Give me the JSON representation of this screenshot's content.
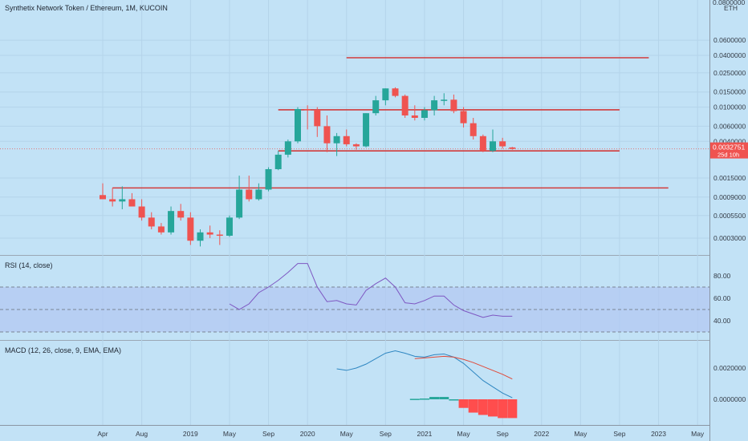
{
  "chart_data": [
    {
      "type": "candlestick",
      "title": "Synthetix Network Token / Ethereum, 1M, KUCOIN",
      "unit": "ETH",
      "y_tick_labels": [
        "0.0600000",
        "0.0400000",
        "0.0250000",
        "0.0150000",
        "0.0100000",
        "0.0060000",
        "0.0040000",
        "0.0015000",
        "0.0009000",
        "0.0005500",
        "0.0003000"
      ],
      "y_tick_values": [
        0.06,
        0.04,
        0.025,
        0.015,
        0.01,
        0.006,
        0.004,
        0.0015,
        0.0009,
        0.00055,
        0.0003
      ],
      "y_top_label": "0.0800000",
      "scale": "log",
      "last_price": "0.0032751",
      "countdown": "25d 10h",
      "x_tick_labels": [
        "Apr",
        "Aug",
        "2019",
        "May",
        "Sep",
        "2020",
        "May",
        "Sep",
        "2021",
        "May",
        "Sep",
        "2022",
        "May",
        "Sep",
        "2023",
        "May"
      ],
      "x_tick_dates": [
        "2018-04",
        "2018-08",
        "2019-01",
        "2019-05",
        "2019-09",
        "2020-01",
        "2020-05",
        "2020-09",
        "2021-01",
        "2021-05",
        "2021-09",
        "2022-01",
        "2022-05",
        "2022-09",
        "2023-01",
        "2023-05"
      ],
      "candles": [
        {
          "date": "2018-04",
          "open": 0.00095,
          "high": 0.0013,
          "low": 0.00085,
          "close": 0.00085
        },
        {
          "date": "2018-05",
          "open": 0.00085,
          "high": 0.00115,
          "low": 0.0007,
          "close": 0.0008
        },
        {
          "date": "2018-06",
          "open": 0.0008,
          "high": 0.0012,
          "low": 0.00065,
          "close": 0.00085
        },
        {
          "date": "2018-07",
          "open": 0.00085,
          "high": 0.001,
          "low": 0.0007,
          "close": 0.0007
        },
        {
          "date": "2018-08",
          "open": 0.0007,
          "high": 0.00085,
          "low": 0.00048,
          "close": 0.00052
        },
        {
          "date": "2018-09",
          "open": 0.00052,
          "high": 0.0006,
          "low": 0.00038,
          "close": 0.00041
        },
        {
          "date": "2018-10",
          "open": 0.00041,
          "high": 0.00045,
          "low": 0.00033,
          "close": 0.00035
        },
        {
          "date": "2018-11",
          "open": 0.00035,
          "high": 0.0007,
          "low": 0.00033,
          "close": 0.00062
        },
        {
          "date": "2018-12",
          "open": 0.00062,
          "high": 0.00075,
          "low": 0.00048,
          "close": 0.00052
        },
        {
          "date": "2019-01",
          "open": 0.00052,
          "high": 0.0006,
          "low": 0.00025,
          "close": 0.00028
        },
        {
          "date": "2019-02",
          "open": 0.00028,
          "high": 0.00038,
          "low": 0.00024,
          "close": 0.00035
        },
        {
          "date": "2019-03",
          "open": 0.00035,
          "high": 0.00042,
          "low": 0.0003,
          "close": 0.00033
        },
        {
          "date": "2019-04",
          "open": 0.00033,
          "high": 0.00037,
          "low": 0.00025,
          "close": 0.00032
        },
        {
          "date": "2019-05",
          "open": 0.00032,
          "high": 0.00055,
          "low": 0.00031,
          "close": 0.00052
        },
        {
          "date": "2019-06",
          "open": 0.00052,
          "high": 0.0016,
          "low": 0.0005,
          "close": 0.0011
        },
        {
          "date": "2019-07",
          "open": 0.0011,
          "high": 0.0016,
          "low": 0.0008,
          "close": 0.00085
        },
        {
          "date": "2019-08",
          "open": 0.00085,
          "high": 0.0013,
          "low": 0.00082,
          "close": 0.0011
        },
        {
          "date": "2019-09",
          "open": 0.0011,
          "high": 0.002,
          "low": 0.00105,
          "close": 0.0019
        },
        {
          "date": "2019-10",
          "open": 0.0019,
          "high": 0.0031,
          "low": 0.00185,
          "close": 0.0028
        },
        {
          "date": "2019-11",
          "open": 0.0028,
          "high": 0.0042,
          "low": 0.0026,
          "close": 0.004
        },
        {
          "date": "2019-12",
          "open": 0.004,
          "high": 0.01,
          "low": 0.0038,
          "close": 0.0095
        },
        {
          "date": "2020-01",
          "open": 0.0095,
          "high": 0.0105,
          "low": 0.0055,
          "close": 0.0093
        },
        {
          "date": "2020-02",
          "open": 0.0093,
          "high": 0.01,
          "low": 0.0045,
          "close": 0.006
        },
        {
          "date": "2020-03",
          "open": 0.006,
          "high": 0.008,
          "low": 0.003,
          "close": 0.0038
        },
        {
          "date": "2020-04",
          "open": 0.0038,
          "high": 0.005,
          "low": 0.0027,
          "close": 0.0046
        },
        {
          "date": "2020-05",
          "open": 0.0046,
          "high": 0.0055,
          "low": 0.0035,
          "close": 0.0037
        },
        {
          "date": "2020-06",
          "open": 0.0037,
          "high": 0.0038,
          "low": 0.0032,
          "close": 0.0035
        },
        {
          "date": "2020-07",
          "open": 0.0035,
          "high": 0.0085,
          "low": 0.0034,
          "close": 0.0085
        },
        {
          "date": "2020-08",
          "open": 0.0085,
          "high": 0.0135,
          "low": 0.008,
          "close": 0.012
        },
        {
          "date": "2020-09",
          "open": 0.012,
          "high": 0.0165,
          "low": 0.0105,
          "close": 0.0165
        },
        {
          "date": "2020-10",
          "open": 0.0165,
          "high": 0.017,
          "low": 0.013,
          "close": 0.0135
        },
        {
          "date": "2020-11",
          "open": 0.0135,
          "high": 0.014,
          "low": 0.0075,
          "close": 0.008
        },
        {
          "date": "2020-12",
          "open": 0.008,
          "high": 0.0105,
          "low": 0.007,
          "close": 0.0075
        },
        {
          "date": "2021-01",
          "open": 0.0075,
          "high": 0.01,
          "low": 0.007,
          "close": 0.0092
        },
        {
          "date": "2021-02",
          "open": 0.0092,
          "high": 0.0135,
          "low": 0.008,
          "close": 0.012
        },
        {
          "date": "2021-03",
          "open": 0.012,
          "high": 0.0145,
          "low": 0.0105,
          "close": 0.0122
        },
        {
          "date": "2021-04",
          "open": 0.0122,
          "high": 0.014,
          "low": 0.0085,
          "close": 0.009
        },
        {
          "date": "2021-05",
          "open": 0.009,
          "high": 0.01,
          "low": 0.0058,
          "close": 0.0065
        },
        {
          "date": "2021-06",
          "open": 0.0065,
          "high": 0.0075,
          "low": 0.0042,
          "close": 0.0046
        },
        {
          "date": "2021-07",
          "open": 0.0046,
          "high": 0.0048,
          "low": 0.003,
          "close": 0.0031
        },
        {
          "date": "2021-08",
          "open": 0.0031,
          "high": 0.0055,
          "low": 0.003,
          "close": 0.004
        },
        {
          "date": "2021-09",
          "open": 0.004,
          "high": 0.0044,
          "low": 0.0033,
          "close": 0.0035
        },
        {
          "date": "2021-10",
          "open": 0.0034,
          "high": 0.00345,
          "low": 0.0032,
          "close": 0.00327
        }
      ],
      "horizontal_lines": [
        {
          "price": 0.0375,
          "from": "2020-05",
          "to": "2022-12",
          "color": "#d23b3b"
        },
        {
          "price": 0.0093,
          "from": "2019-10",
          "to": "2022-09",
          "color": "#d23b3b"
        },
        {
          "price": 0.0031,
          "from": "2019-10",
          "to": "2022-09",
          "color": "#d23b3b"
        },
        {
          "price": 0.00115,
          "from": "2018-05",
          "to": "2023-02",
          "color": "#d23b3b"
        }
      ],
      "colors": {
        "up": "#26a69a",
        "down": "#ef5350",
        "background": "#c2e2f6",
        "line": "#d23b3b"
      }
    },
    {
      "type": "line",
      "title": "RSI (14, close)",
      "y_tick_labels": [
        "80.00",
        "60.00",
        "40.00"
      ],
      "y_tick_values": [
        80,
        60,
        40
      ],
      "bands": [
        70,
        50,
        30
      ],
      "series": [
        {
          "values": [
            {
              "date": "2019-05",
              "value": 55
            },
            {
              "date": "2019-06",
              "value": 50
            },
            {
              "date": "2019-07",
              "value": 55
            },
            {
              "date": "2019-08",
              "value": 65
            },
            {
              "date": "2019-09",
              "value": 70
            },
            {
              "date": "2019-10",
              "value": 76
            },
            {
              "date": "2019-11",
              "value": 83
            },
            {
              "date": "2019-12",
              "value": 91
            },
            {
              "date": "2020-01",
              "value": 91
            },
            {
              "date": "2020-02",
              "value": 70
            },
            {
              "date": "2020-03",
              "value": 57
            },
            {
              "date": "2020-04",
              "value": 58
            },
            {
              "date": "2020-05",
              "value": 55
            },
            {
              "date": "2020-06",
              "value": 54
            },
            {
              "date": "2020-07",
              "value": 67
            },
            {
              "date": "2020-08",
              "value": 73
            },
            {
              "date": "2020-09",
              "value": 78
            },
            {
              "date": "2020-10",
              "value": 70
            },
            {
              "date": "2020-11",
              "value": 56
            },
            {
              "date": "2020-12",
              "value": 55
            },
            {
              "date": "2021-01",
              "value": 58
            },
            {
              "date": "2021-02",
              "value": 62
            },
            {
              "date": "2021-03",
              "value": 62
            },
            {
              "date": "2021-04",
              "value": 54
            },
            {
              "date": "2021-05",
              "value": 49
            },
            {
              "date": "2021-06",
              "value": 46
            },
            {
              "date": "2021-07",
              "value": 43
            },
            {
              "date": "2021-08",
              "value": 45
            },
            {
              "date": "2021-09",
              "value": 44
            },
            {
              "date": "2021-10",
              "value": 44
            }
          ]
        }
      ]
    },
    {
      "type": "line",
      "title": "MACD (12, 26, close, 9, EMA, EMA)",
      "y_tick_labels": [
        "0.0020000",
        "0.0000000"
      ],
      "y_tick_values": [
        0.002,
        0.0
      ],
      "series": [
        {
          "role": "macd",
          "color": "#2e86c1",
          "values": [
            {
              "date": "2020-04",
              "value": 0.00195
            },
            {
              "date": "2020-05",
              "value": 0.00185
            },
            {
              "date": "2020-06",
              "value": 0.002
            },
            {
              "date": "2020-07",
              "value": 0.00225
            },
            {
              "date": "2020-08",
              "value": 0.0026
            },
            {
              "date": "2020-09",
              "value": 0.00295
            },
            {
              "date": "2020-10",
              "value": 0.0031
            },
            {
              "date": "2020-11",
              "value": 0.00295
            },
            {
              "date": "2020-12",
              "value": 0.00275
            },
            {
              "date": "2021-01",
              "value": 0.0027
            },
            {
              "date": "2021-02",
              "value": 0.00285
            },
            {
              "date": "2021-03",
              "value": 0.0029
            },
            {
              "date": "2021-04",
              "value": 0.0027
            },
            {
              "date": "2021-05",
              "value": 0.0023
            },
            {
              "date": "2021-06",
              "value": 0.00175
            },
            {
              "date": "2021-07",
              "value": 0.0012
            },
            {
              "date": "2021-08",
              "value": 0.0008
            },
            {
              "date": "2021-09",
              "value": 0.0004
            },
            {
              "date": "2021-10",
              "value": 0.0001
            }
          ]
        },
        {
          "role": "signal",
          "color": "#e04a3a",
          "values": [
            {
              "date": "2020-12",
              "value": 0.0026
            },
            {
              "date": "2021-01",
              "value": 0.00265
            },
            {
              "date": "2021-02",
              "value": 0.0027
            },
            {
              "date": "2021-03",
              "value": 0.00275
            },
            {
              "date": "2021-04",
              "value": 0.0027
            },
            {
              "date": "2021-05",
              "value": 0.00255
            },
            {
              "date": "2021-06",
              "value": 0.00235
            },
            {
              "date": "2021-07",
              "value": 0.0021
            },
            {
              "date": "2021-08",
              "value": 0.00185
            },
            {
              "date": "2021-09",
              "value": 0.0016
            },
            {
              "date": "2021-10",
              "value": 0.0013
            }
          ]
        },
        {
          "role": "histogram",
          "values": [
            {
              "date": "2020-12",
              "value": 3e-05
            },
            {
              "date": "2021-01",
              "value": 5e-05
            },
            {
              "date": "2021-02",
              "value": 0.00015
            },
            {
              "date": "2021-03",
              "value": 0.00015
            },
            {
              "date": "2021-04",
              "value": 0.0
            },
            {
              "date": "2021-05",
              "value": -0.00055
            },
            {
              "date": "2021-06",
              "value": -0.00085
            },
            {
              "date": "2021-07",
              "value": -0.001
            },
            {
              "date": "2021-08",
              "value": -0.0011
            },
            {
              "date": "2021-09",
              "value": -0.0012
            },
            {
              "date": "2021-10",
              "value": -0.0012
            }
          ]
        }
      ]
    }
  ]
}
